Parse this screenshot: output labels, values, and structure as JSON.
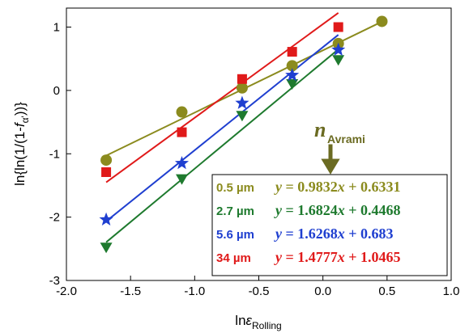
{
  "chart_data": {
    "type": "scatter",
    "xlabel": {
      "main": "ln",
      "symbol": "ε",
      "sub": "Rolling"
    },
    "ylabel": {
      "prefix": "ln{ln(1/(1-",
      "symbol": "f",
      "sub": "α'",
      "suffix": "))}"
    },
    "xlim": [
      -2.0,
      1.0
    ],
    "ylim": [
      -3,
      1.3
    ],
    "x_ticks": [
      "-2.0",
      "-1.5",
      "-1.0",
      "-0.5",
      "0.0",
      "0.5",
      "1.0"
    ],
    "y_ticks": [
      "-3",
      "-2",
      "-1",
      "0",
      "1"
    ],
    "x_tick_values": [
      -2.0,
      -1.5,
      -1.0,
      -0.5,
      0.0,
      0.5,
      1.0
    ],
    "y_tick_values": [
      -3,
      -2,
      -1,
      0,
      1
    ],
    "grid": false,
    "legend_position": "bottom-right",
    "annotation": {
      "main": "n",
      "sub": "Avrami"
    },
    "series": [
      {
        "name": "0.5 µm",
        "equation": "y = 0.9832x + 0.6331",
        "marker": "circle",
        "color": "#8B8B1E",
        "x": [
          -1.69,
          -1.1,
          -0.63,
          -0.24,
          0.12,
          0.46
        ],
        "y": [
          -1.1,
          -0.34,
          0.04,
          0.39,
          0.74,
          1.09
        ],
        "fit": {
          "slope": 0.9832,
          "intercept": 0.6331,
          "x_range": [
            -1.69,
            0.46
          ]
        }
      },
      {
        "name": "2.7 µm",
        "equation": "y = 1.6824x + 0.4468",
        "marker": "triangle-down",
        "color": "#1E7A2E",
        "x": [
          -1.69,
          -1.1,
          -0.63,
          -0.24,
          0.12
        ],
        "y": [
          -2.48,
          -1.4,
          -0.4,
          0.1,
          0.48
        ],
        "fit": {
          "slope": 1.6824,
          "intercept": 0.4468,
          "x_range": [
            -1.69,
            0.12
          ]
        }
      },
      {
        "name": "5.6 µm",
        "equation": "y = 1.6268x + 0.683",
        "marker": "star",
        "color": "#1F3FD0",
        "x": [
          -1.69,
          -1.1,
          -0.63,
          -0.24,
          0.12
        ],
        "y": [
          -2.04,
          -1.15,
          -0.2,
          0.24,
          0.64
        ],
        "fit": {
          "slope": 1.6268,
          "intercept": 0.683,
          "x_range": [
            -1.69,
            0.12
          ]
        }
      },
      {
        "name": "34 µm",
        "equation": "y = 1.4777x + 1.0465",
        "marker": "square",
        "color": "#E01A1A",
        "x": [
          -1.69,
          -1.1,
          -0.63,
          -0.24,
          0.12
        ],
        "y": [
          -1.29,
          -0.66,
          0.18,
          0.61,
          1.0
        ],
        "fit": {
          "slope": 1.4777,
          "intercept": 1.0465,
          "x_range": [
            -1.69,
            0.12
          ]
        }
      }
    ]
  }
}
